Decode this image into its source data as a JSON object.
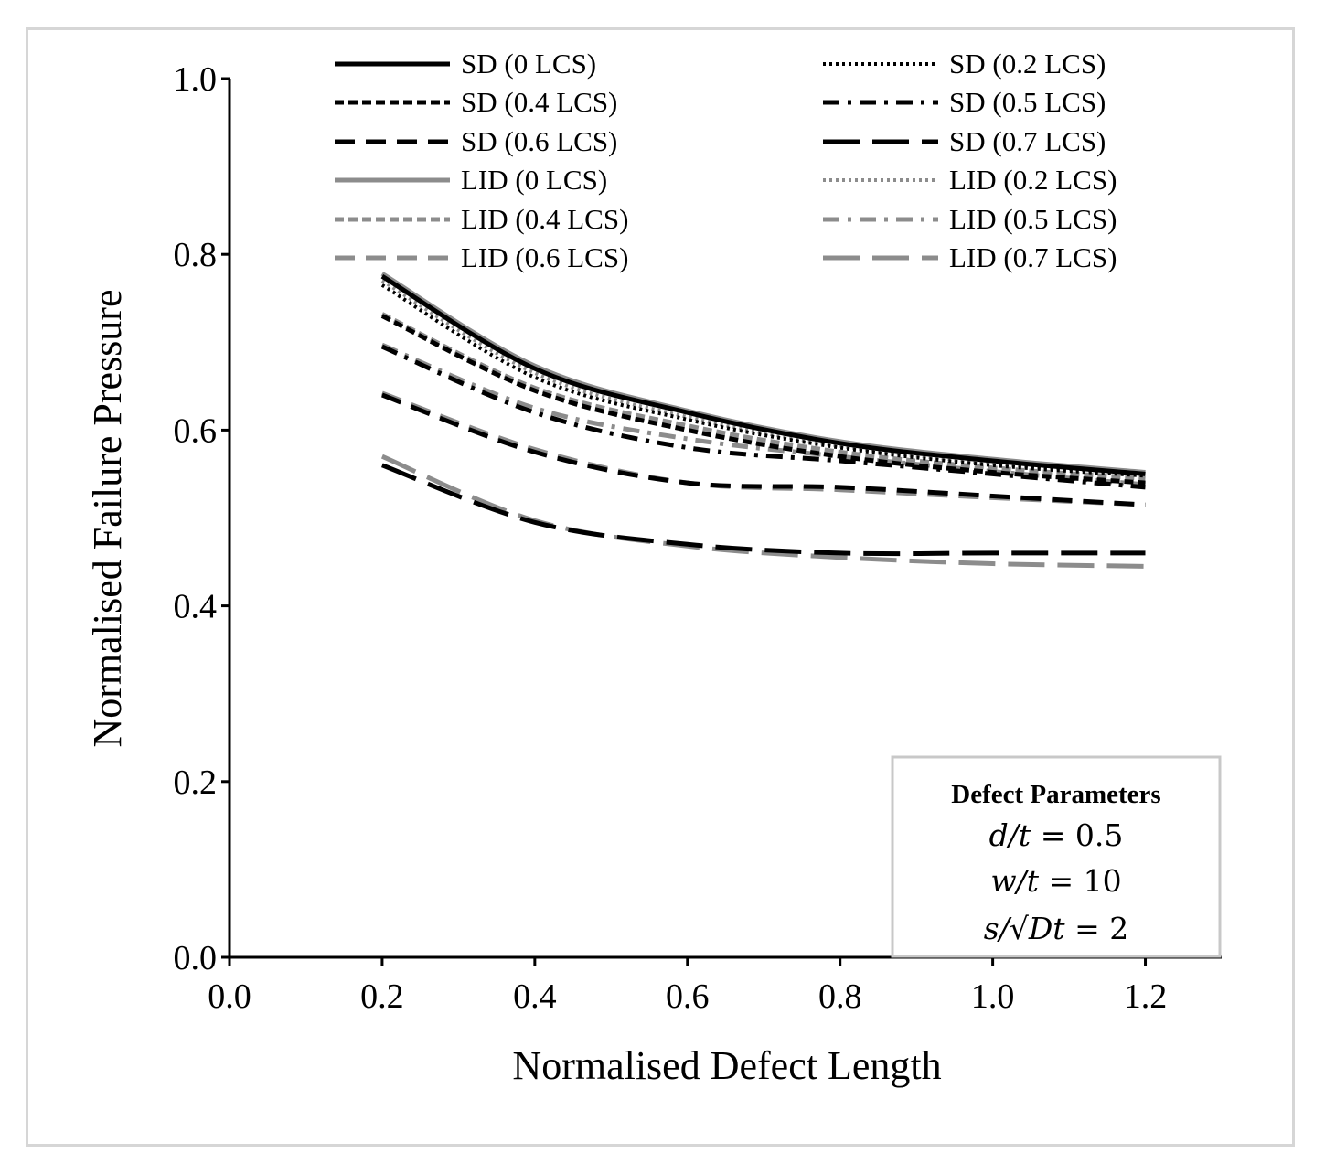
{
  "chart_data": {
    "type": "line",
    "title": "",
    "xlabel": "Normalised Defect Length",
    "ylabel": "Normalised Failure Pressure",
    "xlim": [
      0.0,
      1.3
    ],
    "ylim": [
      0.0,
      1.0
    ],
    "x_ticks": [
      "0.0",
      "0.2",
      "0.4",
      "0.6",
      "0.8",
      "1.0",
      "1.2"
    ],
    "y_ticks": [
      "0.0",
      "0.2",
      "0.4",
      "0.6",
      "0.8",
      "1.0"
    ],
    "grid": false,
    "legend_position": "top",
    "x": [
      0.2,
      0.4,
      0.6,
      0.8,
      1.0,
      1.2
    ],
    "series": [
      {
        "name": "SD (0 LCS)",
        "color": "#000000",
        "dash": "solid",
        "values": [
          0.775,
          0.67,
          0.62,
          0.585,
          0.565,
          0.55
        ]
      },
      {
        "name": "SD (0.2 LCS)",
        "color": "#000000",
        "dash": "dot",
        "values": [
          0.765,
          0.66,
          0.612,
          0.58,
          0.56,
          0.548
        ]
      },
      {
        "name": "SD (0.4 LCS)",
        "color": "#000000",
        "dash": "short",
        "values": [
          0.73,
          0.645,
          0.6,
          0.57,
          0.552,
          0.54
        ]
      },
      {
        "name": "SD (0.5 LCS)",
        "color": "#000000",
        "dash": "dashdot",
        "values": [
          0.695,
          0.62,
          0.58,
          0.565,
          0.55,
          0.535
        ]
      },
      {
        "name": "SD (0.6 LCS)",
        "color": "#000000",
        "dash": "medium",
        "values": [
          0.64,
          0.575,
          0.54,
          0.535,
          0.525,
          0.515
        ]
      },
      {
        "name": "SD (0.7 LCS)",
        "color": "#000000",
        "dash": "long",
        "values": [
          0.56,
          0.495,
          0.47,
          0.46,
          0.46,
          0.46
        ]
      },
      {
        "name": "LID (0 LCS)",
        "color": "#8c8c8c",
        "dash": "solid",
        "values": [
          0.778,
          0.673,
          0.622,
          0.587,
          0.567,
          0.552
        ]
      },
      {
        "name": "LID (0.2 LCS)",
        "color": "#8c8c8c",
        "dash": "dot",
        "values": [
          0.77,
          0.665,
          0.615,
          0.582,
          0.562,
          0.55
        ]
      },
      {
        "name": "LID (0.4 LCS)",
        "color": "#8c8c8c",
        "dash": "short",
        "values": [
          0.732,
          0.648,
          0.605,
          0.575,
          0.557,
          0.545
        ]
      },
      {
        "name": "LID (0.5 LCS)",
        "color": "#8c8c8c",
        "dash": "dashdot",
        "values": [
          0.697,
          0.625,
          0.59,
          0.57,
          0.553,
          0.538
        ]
      },
      {
        "name": "LID (0.6 LCS)",
        "color": "#8c8c8c",
        "dash": "medium",
        "values": [
          0.642,
          0.578,
          0.54,
          0.532,
          0.523,
          0.515
        ]
      },
      {
        "name": "LID (0.7 LCS)",
        "color": "#8c8c8c",
        "dash": "long",
        "values": [
          0.57,
          0.497,
          0.468,
          0.455,
          0.448,
          0.445
        ]
      }
    ],
    "annotation": {
      "title": "Defect Parameters",
      "lines": [
        {
          "var": "d/t",
          "value": "= 0.5"
        },
        {
          "var": "w/t",
          "value": "= 10"
        },
        {
          "var": "s/√Dt",
          "value": "= 2"
        }
      ]
    }
  }
}
